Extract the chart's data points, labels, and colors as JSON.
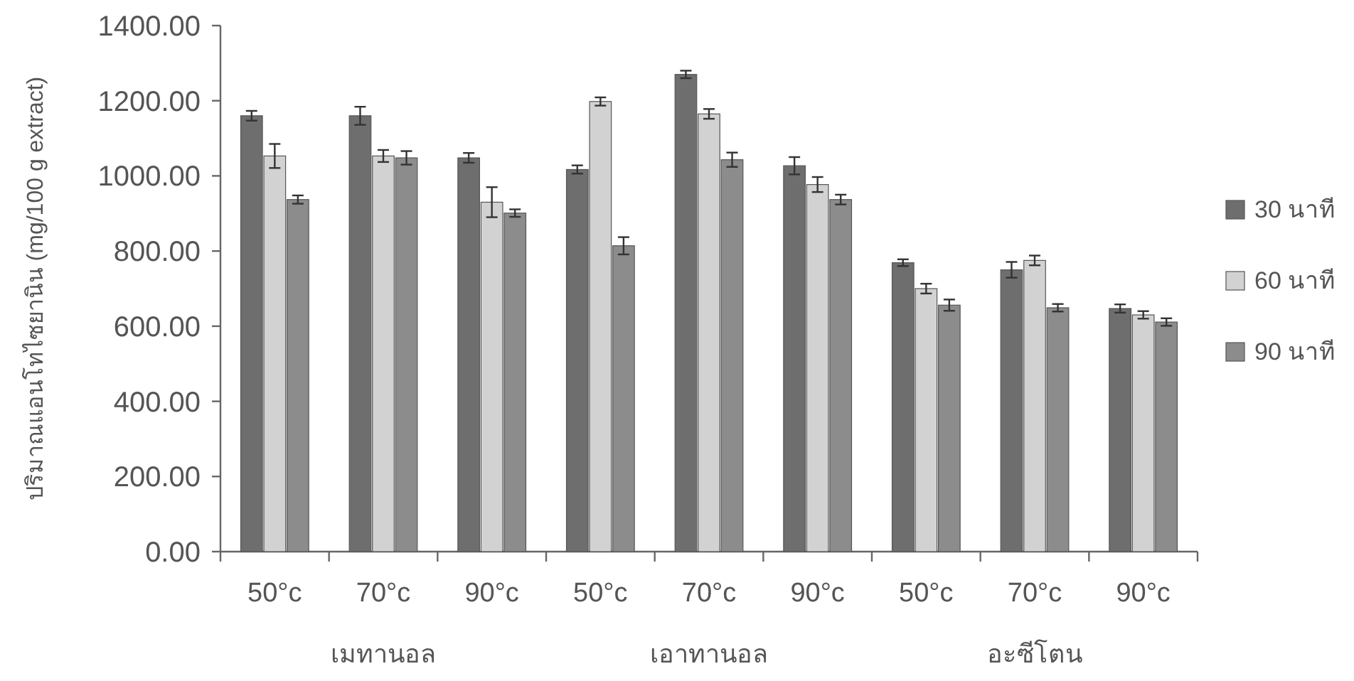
{
  "chart_data": {
    "type": "bar",
    "ylabel": "ปริมาณแอนโทไซยานิน (mg/100 g extract)",
    "categories": [
      "50°c",
      "70°c",
      "90°c",
      "50°c",
      "70°c",
      "90°c",
      "50°c",
      "70°c",
      "90°c"
    ],
    "annotations": [
      "เมทานอล",
      "เอาทานอล",
      "อะซีโตน"
    ],
    "series": [
      {
        "name": "30 นาที",
        "color": "#6e6e6e",
        "values": [
          1160,
          1160,
          1048,
          1017,
          1270,
          1027,
          769,
          750,
          647
        ],
        "errors": [
          13,
          24,
          13,
          11,
          10,
          23,
          9,
          21,
          11
        ]
      },
      {
        "name": "60 นาที",
        "color": "#d2d2d2",
        "values": [
          1053,
          1053,
          930,
          1198,
          1165,
          977,
          700,
          775,
          630
        ],
        "errors": [
          32,
          16,
          40,
          11,
          13,
          20,
          13,
          13,
          10
        ]
      },
      {
        "name": "90 นาที",
        "color": "#8c8c8c",
        "values": [
          937,
          1048,
          901,
          814,
          1043,
          937,
          656,
          649,
          611
        ],
        "errors": [
          11,
          18,
          10,
          23,
          19,
          13,
          15,
          10,
          10
        ]
      }
    ],
    "ylim": [
      0,
      1400
    ],
    "yticks": [
      {
        "value": 0,
        "label": "0.00"
      },
      {
        "value": 200,
        "label": "200.00"
      },
      {
        "value": 400,
        "label": "400.00"
      },
      {
        "value": 600,
        "label": "600.00"
      },
      {
        "value": 800,
        "label": "800.00"
      },
      {
        "value": 1000,
        "label": "1000.00"
      },
      {
        "value": 1200,
        "label": "1200.00"
      },
      {
        "value": 1400,
        "label": "1400.00"
      }
    ],
    "legend": "right"
  }
}
